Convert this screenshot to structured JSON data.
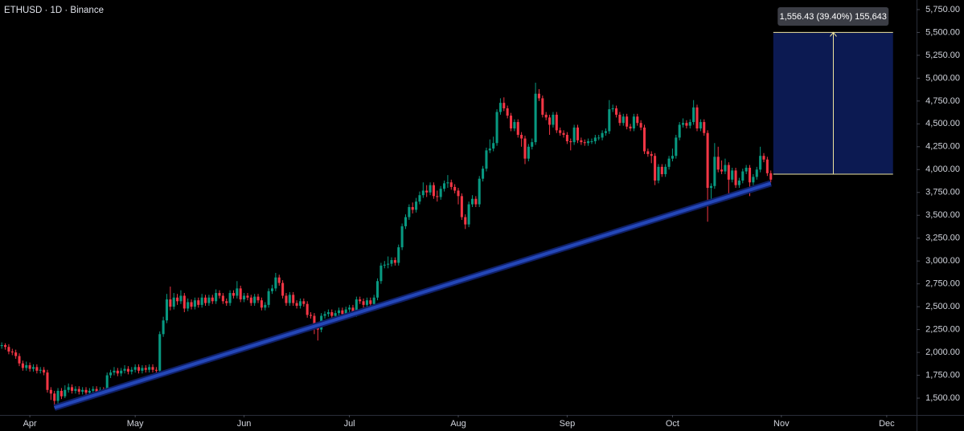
{
  "chart_data": {
    "type": "candlestick",
    "title": "ETHUSD · 1D · Binance",
    "up_color": "#089981",
    "down_color": "#f23645",
    "xlim": [
      -8.5,
      252.5
    ],
    "xticks": [
      {
        "value": 0,
        "label": "Apr"
      },
      {
        "value": 30,
        "label": "May"
      },
      {
        "value": 61,
        "label": "Jun"
      },
      {
        "value": 91,
        "label": "Jul"
      },
      {
        "value": 122,
        "label": "Aug"
      },
      {
        "value": 153,
        "label": "Sep"
      },
      {
        "value": 183,
        "label": "Oct"
      },
      {
        "value": 214,
        "label": "Nov"
      },
      {
        "value": 244,
        "label": "Dec"
      }
    ],
    "ylim": [
      1316,
      5855
    ],
    "yticks": [
      {
        "value": 1500,
        "label": "1,500.00"
      },
      {
        "value": 1750,
        "label": "1,750.00"
      },
      {
        "value": 2000,
        "label": "2,000.00"
      },
      {
        "value": 2250,
        "label": "2,250.00"
      },
      {
        "value": 2500,
        "label": "2,500.00"
      },
      {
        "value": 2750,
        "label": "2,750.00"
      },
      {
        "value": 3000,
        "label": "3,000.00"
      },
      {
        "value": 3250,
        "label": "3,250.00"
      },
      {
        "value": 3500,
        "label": "3,500.00"
      },
      {
        "value": 3750,
        "label": "3,750.00"
      },
      {
        "value": 4000,
        "label": "4,000.00"
      },
      {
        "value": 4250,
        "label": "4,250.00"
      },
      {
        "value": 4500,
        "label": "4,500.00"
      },
      {
        "value": 4750,
        "label": "4,750.00"
      },
      {
        "value": 5000,
        "label": "5,000.00"
      },
      {
        "value": 5250,
        "label": "5,250.00"
      },
      {
        "value": 5500,
        "label": "5,500.00"
      },
      {
        "value": 5750,
        "label": "5,750.00"
      }
    ],
    "x": [
      -8,
      -7,
      -6,
      -5,
      -4,
      -3,
      -2,
      -1,
      0,
      1,
      2,
      3,
      4,
      5,
      6,
      7,
      8,
      9,
      10,
      11,
      12,
      13,
      14,
      15,
      16,
      17,
      18,
      19,
      20,
      21,
      22,
      23,
      24,
      25,
      26,
      27,
      28,
      29,
      30,
      31,
      32,
      33,
      34,
      35,
      36,
      37,
      38,
      39,
      40,
      41,
      42,
      43,
      44,
      45,
      46,
      47,
      48,
      49,
      50,
      51,
      52,
      53,
      54,
      55,
      56,
      57,
      58,
      59,
      60,
      61,
      62,
      63,
      64,
      65,
      66,
      67,
      68,
      69,
      70,
      71,
      72,
      73,
      74,
      75,
      76,
      77,
      78,
      79,
      80,
      81,
      82,
      83,
      84,
      85,
      86,
      87,
      88,
      89,
      90,
      91,
      92,
      93,
      94,
      95,
      96,
      97,
      98,
      99,
      100,
      101,
      102,
      103,
      104,
      105,
      106,
      107,
      108,
      109,
      110,
      111,
      112,
      113,
      114,
      115,
      116,
      117,
      118,
      119,
      120,
      121,
      122,
      123,
      124,
      125,
      126,
      127,
      128,
      129,
      130,
      131,
      132,
      133,
      134,
      135,
      136,
      137,
      138,
      139,
      140,
      141,
      142,
      143,
      144,
      145,
      146,
      147,
      148,
      149,
      150,
      151,
      152,
      153,
      154,
      155,
      156,
      157,
      158,
      159,
      160,
      161,
      162,
      163,
      164,
      165,
      166,
      167,
      168,
      169,
      170,
      171,
      172,
      173,
      174,
      175,
      176,
      177,
      178,
      179,
      180,
      181,
      182,
      183,
      184,
      185,
      186,
      187,
      188,
      189,
      190,
      191,
      192,
      193,
      194,
      195,
      196,
      197,
      198,
      199,
      200,
      201,
      202,
      203,
      204,
      205,
      206,
      207,
      208,
      209,
      210,
      211
    ],
    "open": [
      2070,
      2080,
      2060,
      2010,
      2000,
      1960,
      1880,
      1830,
      1860,
      1820,
      1840,
      1800,
      1810,
      1780,
      1590,
      1550,
      1470,
      1580,
      1520,
      1590,
      1620,
      1580,
      1600,
      1570,
      1590,
      1560,
      1580,
      1600,
      1570,
      1590,
      1580,
      1750,
      1780,
      1800,
      1770,
      1800,
      1820,
      1790,
      1810,
      1840,
      1800,
      1830,
      1810,
      1840,
      1810,
      1800,
      2200,
      2350,
      2580,
      2500,
      2600,
      2560,
      2620,
      2480,
      2550,
      2500,
      2570,
      2520,
      2600,
      2540,
      2600,
      2560,
      2650,
      2620,
      2560,
      2540,
      2650,
      2620,
      2700,
      2580,
      2620,
      2600,
      2540,
      2610,
      2570,
      2490,
      2520,
      2670,
      2700,
      2820,
      2760,
      2620,
      2540,
      2630,
      2540,
      2510,
      2560,
      2530,
      2410,
      2400,
      2280,
      2250,
      2400,
      2420,
      2440,
      2400,
      2430,
      2460,
      2420,
      2470,
      2490,
      2420,
      2580,
      2560,
      2520,
      2570,
      2530,
      2600,
      2780,
      2950,
      2960,
      2970,
      3010,
      2980,
      3150,
      3380,
      3480,
      3590,
      3560,
      3650,
      3720,
      3770,
      3750,
      3830,
      3710,
      3700,
      3790,
      3850,
      3860,
      3810,
      3770,
      3710,
      3480,
      3400,
      3620,
      3680,
      3620,
      3900,
      4010,
      4210,
      4230,
      4290,
      4630,
      4730,
      4670,
      4590,
      4450,
      4520,
      4380,
      4340,
      4120,
      4250,
      4300,
      4830,
      4780,
      4600,
      4570,
      4490,
      4600,
      4430,
      4400,
      4380,
      4310,
      4300,
      4460,
      4320,
      4300,
      4290,
      4310,
      4310,
      4350,
      4350,
      4400,
      4420,
      4660,
      4670,
      4600,
      4510,
      4580,
      4470,
      4450,
      4580,
      4510,
      4460,
      4200,
      4170,
      4150,
      3880,
      4030,
      3950,
      4030,
      4120,
      4150,
      4350,
      4490,
      4510,
      4480,
      4520,
      4680,
      4450,
      4520,
      4400,
      3800,
      3820,
      4140,
      4000,
      3980,
      4050,
      3890,
      3990,
      3830,
      3880,
      3980,
      4020,
      3860,
      3920,
      4000,
      4150,
      4110,
      3960
    ],
    "high": [
      2110,
      2100,
      2090,
      2040,
      2030,
      1990,
      1910,
      1900,
      1890,
      1870,
      1870,
      1840,
      1840,
      1810,
      1620,
      1580,
      1610,
      1610,
      1640,
      1660,
      1650,
      1630,
      1630,
      1620,
      1620,
      1610,
      1630,
      1630,
      1620,
      1620,
      1780,
      1810,
      1840,
      1830,
      1830,
      1860,
      1850,
      1840,
      1870,
      1870,
      1860,
      1860,
      1870,
      1870,
      1840,
      2230,
      2390,
      2640,
      2720,
      2650,
      2640,
      2680,
      2650,
      2590,
      2580,
      2600,
      2600,
      2640,
      2630,
      2630,
      2630,
      2690,
      2680,
      2650,
      2590,
      2680,
      2680,
      2780,
      2730,
      2650,
      2650,
      2630,
      2640,
      2640,
      2600,
      2550,
      2700,
      2740,
      2870,
      2850,
      2790,
      2650,
      2660,
      2660,
      2570,
      2590,
      2590,
      2560,
      2440,
      2430,
      2310,
      2430,
      2450,
      2470,
      2470,
      2460,
      2490,
      2490,
      2500,
      2520,
      2520,
      2610,
      2610,
      2590,
      2600,
      2600,
      2630,
      2810,
      2980,
      3000,
      3050,
      3040,
      3040,
      3180,
      3410,
      3510,
      3620,
      3640,
      3690,
      3760,
      3860,
      3830,
      3860,
      3860,
      3770,
      3820,
      3880,
      3940,
      3890,
      3840,
      3800,
      3740,
      3510,
      3650,
      3720,
      3710,
      3930,
      4040,
      4240,
      4330,
      4360,
      4660,
      4780,
      4790,
      4700,
      4620,
      4550,
      4550,
      4410,
      4370,
      4280,
      4340,
      4950,
      4880,
      4810,
      4630,
      4600,
      4630,
      4630,
      4460,
      4430,
      4410,
      4340,
      4490,
      4490,
      4350,
      4330,
      4340,
      4340,
      4380,
      4380,
      4430,
      4450,
      4760,
      4710,
      4700,
      4630,
      4610,
      4610,
      4500,
      4610,
      4610,
      4540,
      4490,
      4230,
      4200,
      4180,
      4060,
      4060,
      4060,
      4150,
      4230,
      4380,
      4520,
      4560,
      4540,
      4550,
      4760,
      4710,
      4550,
      4550,
      4430,
      3850,
      4290,
      4250,
      4100,
      4120,
      4080,
      4020,
      4020,
      3910,
      4010,
      4050,
      4050,
      3950,
      4030,
      4250,
      4180,
      4140,
      3990
    ],
    "low": [
      2040,
      2030,
      1980,
      1970,
      1930,
      1850,
      1800,
      1800,
      1790,
      1790,
      1770,
      1770,
      1750,
      1560,
      1480,
      1400,
      1440,
      1490,
      1500,
      1560,
      1550,
      1550,
      1540,
      1540,
      1530,
      1530,
      1550,
      1540,
      1540,
      1550,
      1560,
      1720,
      1750,
      1740,
      1740,
      1770,
      1760,
      1760,
      1780,
      1770,
      1770,
      1780,
      1780,
      1780,
      1770,
      1780,
      2170,
      2320,
      2460,
      2470,
      2520,
      2530,
      2440,
      2450,
      2470,
      2470,
      2490,
      2490,
      2510,
      2510,
      2530,
      2530,
      2590,
      2530,
      2510,
      2510,
      2590,
      2590,
      2550,
      2550,
      2570,
      2510,
      2510,
      2540,
      2460,
      2460,
      2490,
      2640,
      2670,
      2730,
      2590,
      2510,
      2510,
      2510,
      2480,
      2480,
      2500,
      2380,
      2370,
      2200,
      2130,
      2220,
      2370,
      2390,
      2370,
      2370,
      2400,
      2390,
      2390,
      2440,
      2390,
      2390,
      2530,
      2490,
      2490,
      2500,
      2500,
      2570,
      2750,
      2920,
      2920,
      2940,
      2950,
      2950,
      3120,
      3350,
      3450,
      3520,
      3530,
      3620,
      3690,
      3700,
      3720,
      3680,
      3650,
      3670,
      3760,
      3800,
      3780,
      3740,
      3620,
      3450,
      3350,
      3370,
      3590,
      3590,
      3590,
      3870,
      3980,
      4180,
      4200,
      4260,
      4600,
      4640,
      4560,
      4420,
      4420,
      4350,
      4250,
      4060,
      4090,
      4220,
      4270,
      4750,
      4570,
      4540,
      4380,
      4460,
      4400,
      4370,
      4350,
      4280,
      4210,
      4270,
      4290,
      4270,
      4260,
      4260,
      4280,
      4280,
      4320,
      4320,
      4370,
      4390,
      4630,
      4570,
      4480,
      4480,
      4440,
      4420,
      4420,
      4480,
      4430,
      4170,
      4140,
      4070,
      3830,
      3850,
      3920,
      3920,
      4000,
      4090,
      4120,
      4320,
      4460,
      4450,
      4450,
      4490,
      4420,
      4420,
      4370,
      3430,
      3640,
      3790,
      3970,
      3950,
      3950,
      3700,
      3860,
      3800,
      3800,
      3850,
      3950,
      3710,
      3830,
      3890,
      3970,
      4080,
      3930,
      3860
    ],
    "close": [
      2080,
      2060,
      2010,
      2000,
      1960,
      1880,
      1830,
      1860,
      1820,
      1840,
      1800,
      1810,
      1780,
      1590,
      1550,
      1470,
      1580,
      1520,
      1590,
      1620,
      1580,
      1600,
      1570,
      1590,
      1560,
      1580,
      1600,
      1570,
      1590,
      1580,
      1750,
      1780,
      1800,
      1770,
      1800,
      1820,
      1790,
      1810,
      1840,
      1800,
      1830,
      1810,
      1840,
      1810,
      1800,
      2200,
      2350,
      2580,
      2500,
      2600,
      2560,
      2620,
      2480,
      2550,
      2500,
      2570,
      2520,
      2600,
      2540,
      2600,
      2560,
      2650,
      2620,
      2560,
      2540,
      2650,
      2620,
      2700,
      2580,
      2620,
      2600,
      2540,
      2610,
      2570,
      2490,
      2520,
      2670,
      2700,
      2820,
      2760,
      2620,
      2540,
      2630,
      2540,
      2510,
      2560,
      2530,
      2410,
      2400,
      2280,
      2250,
      2400,
      2420,
      2440,
      2400,
      2430,
      2460,
      2420,
      2470,
      2490,
      2420,
      2580,
      2560,
      2520,
      2570,
      2530,
      2600,
      2780,
      2950,
      2960,
      2970,
      3010,
      2980,
      3150,
      3380,
      3480,
      3590,
      3560,
      3650,
      3720,
      3770,
      3750,
      3830,
      3710,
      3700,
      3790,
      3850,
      3860,
      3810,
      3770,
      3710,
      3480,
      3400,
      3620,
      3680,
      3620,
      3900,
      4010,
      4210,
      4230,
      4290,
      4630,
      4730,
      4670,
      4590,
      4450,
      4520,
      4380,
      4340,
      4120,
      4250,
      4300,
      4830,
      4780,
      4600,
      4570,
      4490,
      4600,
      4430,
      4400,
      4380,
      4310,
      4300,
      4460,
      4320,
      4300,
      4290,
      4310,
      4310,
      4350,
      4350,
      4400,
      4420,
      4660,
      4670,
      4600,
      4510,
      4580,
      4470,
      4450,
      4580,
      4510,
      4460,
      4200,
      4170,
      4150,
      3880,
      4030,
      3950,
      4030,
      4120,
      4150,
      4350,
      4490,
      4510,
      4480,
      4520,
      4680,
      4450,
      4520,
      4400,
      3800,
      3820,
      4140,
      4000,
      3980,
      4050,
      3890,
      3990,
      3830,
      3880,
      3980,
      4020,
      3860,
      3920,
      4000,
      4150,
      4110,
      3960,
      3890
    ],
    "trendline": {
      "x": [
        7,
        211
      ],
      "y": [
        1395,
        3850
      ],
      "color": "#2447b8"
    },
    "measure": {
      "x": [
        211.7,
        245.8
      ],
      "y": [
        3950,
        5500
      ],
      "arrow_x": 228.8,
      "color": "#0c1a52",
      "line_color": "#f0e6a0",
      "label": "1,556.43 (39.40%) 155,643"
    }
  }
}
